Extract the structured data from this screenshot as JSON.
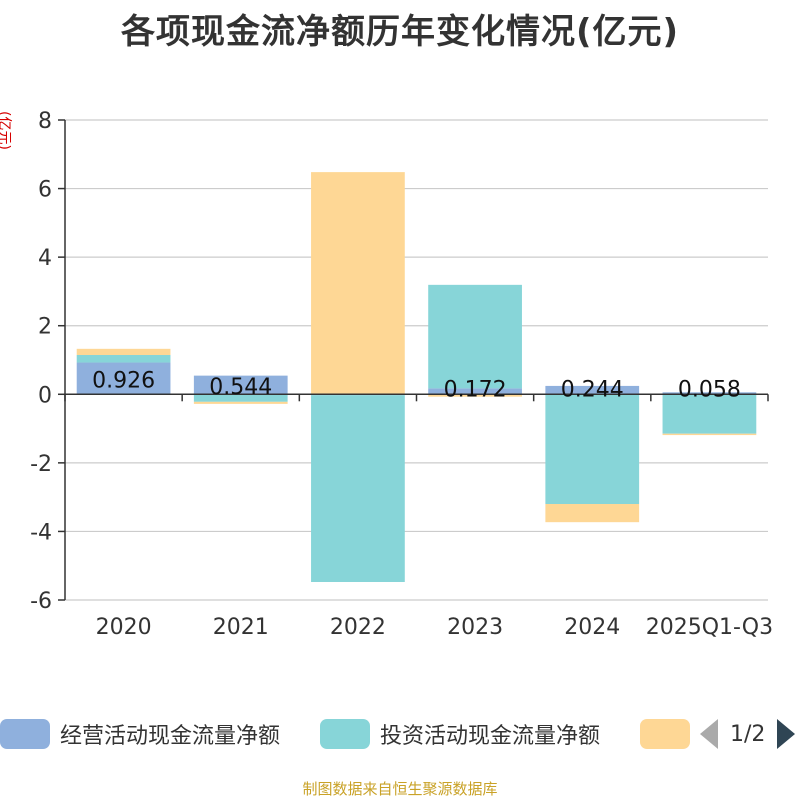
{
  "title": "各项现金流净额历年变化情况(亿元)",
  "y_unit": "(亿元)",
  "source": "制图数据来自恒生聚源数据库",
  "pager": {
    "text": "1/2"
  },
  "chart_data": {
    "type": "bar",
    "stacked": true,
    "title": "各项现金流净额历年变化情况(亿元)",
    "ylabel": "(亿元)",
    "ylim": [
      -6,
      8
    ],
    "yticks": [
      -6,
      -4,
      -2,
      0,
      2,
      4,
      6,
      8
    ],
    "categories": [
      "2020",
      "2021",
      "2022",
      "2023",
      "2024",
      "2025Q1-Q3"
    ],
    "grid": true,
    "legend_position": "bottom",
    "series": [
      {
        "name": "经营活动现金流量净额",
        "color": "#8fb0dd",
        "values": [
          0.926,
          0.544,
          -0.025,
          0.172,
          0.244,
          0.058
        ],
        "labels": [
          "0.926",
          "0.544",
          "",
          "0.172",
          "0.244",
          "0.058"
        ]
      },
      {
        "name": "投资活动现金流量净额",
        "color": "#87d5d8",
        "values": [
          0.22,
          -0.22,
          -5.45,
          3.02,
          -3.2,
          -1.15
        ]
      },
      {
        "name": "",
        "color": "#fed795",
        "values": [
          0.18,
          -0.06,
          6.48,
          -0.07,
          -0.53,
          -0.04
        ]
      }
    ]
  }
}
